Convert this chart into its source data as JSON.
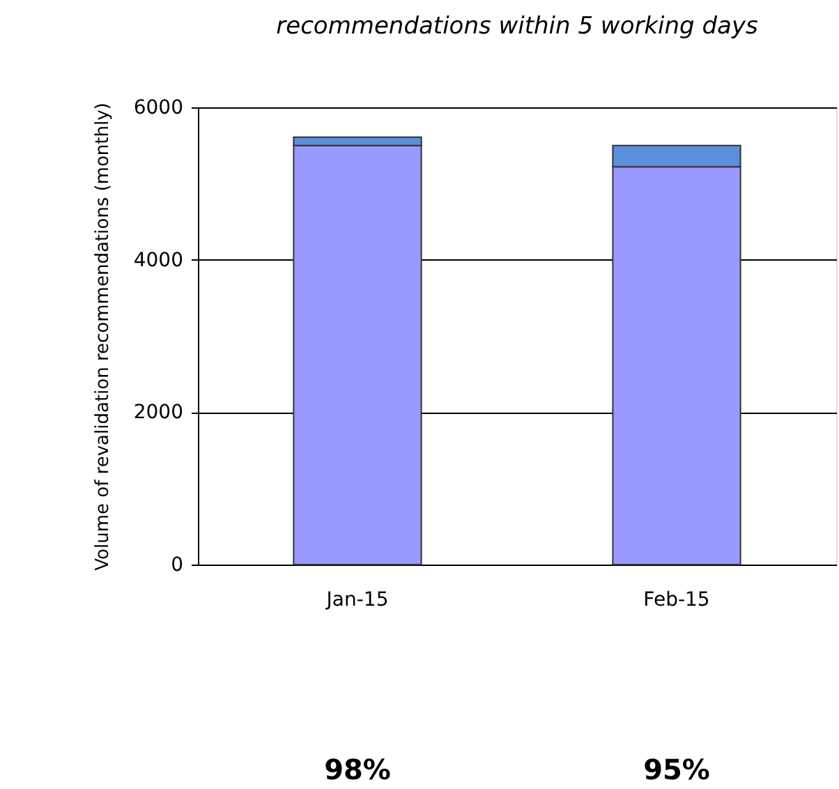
{
  "chart_data": {
    "type": "bar",
    "title": "recommendations within 5 working days",
    "ylabel": "Volume of revalidation recommendations (monthly)",
    "categories": [
      "Jan-15",
      "Feb-15"
    ],
    "stacked": true,
    "series": [
      {
        "color": "#9999ff",
        "values": [
          5500,
          5220
        ]
      },
      {
        "color": "#5b8fd9",
        "values": [
          110,
          280
        ]
      }
    ],
    "ylim": [
      0,
      6000
    ],
    "yticks": [
      0,
      2000,
      4000,
      6000
    ],
    "grid": "y",
    "annotations": [
      "98%",
      "95%"
    ]
  }
}
